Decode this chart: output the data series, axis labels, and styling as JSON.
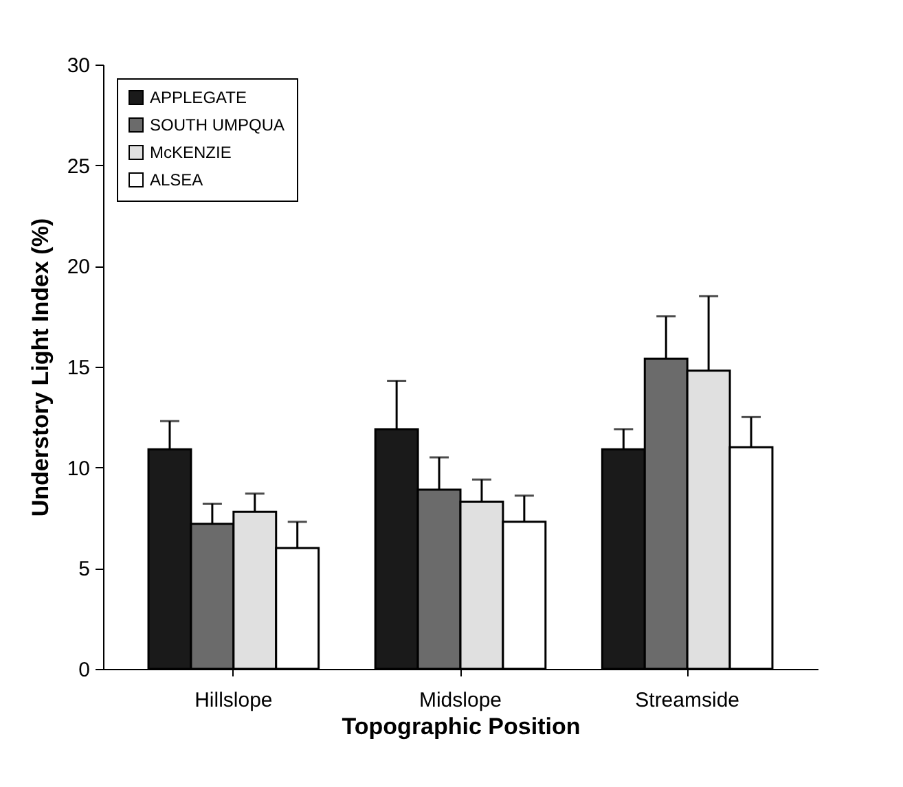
{
  "chart_data": {
    "type": "bar",
    "xlabel": "Topographic Position",
    "ylabel": "Understory Light Index (%)",
    "categories": [
      "Hillslope",
      "Midslope",
      "Streamside"
    ],
    "series": [
      {
        "name": "APPLEGATE",
        "color": "#1a1a1a",
        "values": [
          10.9,
          11.9,
          10.9
        ],
        "errors": [
          [
            10.9,
            12.3
          ],
          [
            11.9,
            14.3
          ],
          [
            10.9,
            11.9
          ]
        ]
      },
      {
        "name": "SOUTH UMPQUA",
        "color": "#6b6b6b",
        "values": [
          7.2,
          8.9,
          15.4
        ],
        "errors": [
          [
            7.2,
            8.2
          ],
          [
            8.9,
            10.5
          ],
          [
            15.4,
            17.5
          ]
        ]
      },
      {
        "name": "McKENZIE",
        "color": "#e0e0e0",
        "values": [
          7.8,
          8.3,
          14.8
        ],
        "errors": [
          [
            7.8,
            8.7
          ],
          [
            8.3,
            9.4
          ],
          [
            14.8,
            18.5
          ]
        ]
      },
      {
        "name": "ALSEA",
        "color": "#ffffff",
        "values": [
          6.0,
          7.3,
          11.0
        ],
        "errors": [
          [
            6.0,
            7.3
          ],
          [
            7.3,
            8.6
          ],
          [
            11.0,
            12.5
          ]
        ]
      }
    ],
    "ylim": [
      0,
      30
    ],
    "yticks": [
      0,
      5,
      10,
      15,
      20,
      25,
      30
    ],
    "grid": false,
    "legend": "top left"
  }
}
